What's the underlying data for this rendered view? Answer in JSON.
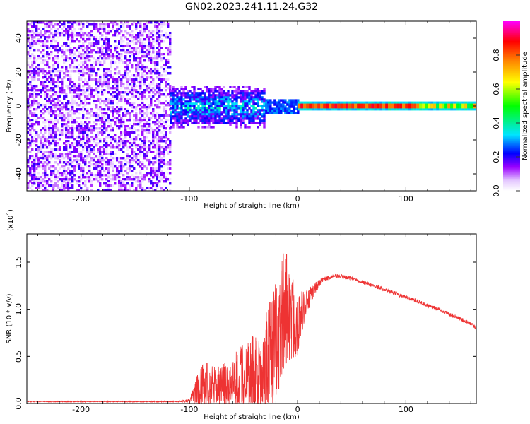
{
  "chart_data": [
    {
      "type": "heatmap",
      "title": "GN02.2023.241.11.24.G32",
      "xlabel": "Height of straight line (km)",
      "ylabel": "Frequency (Hz)",
      "xlim": [
        -250,
        165
      ],
      "ylim": [
        -50,
        50
      ],
      "xticks": [
        -200,
        -100,
        0,
        100
      ],
      "yticks": [
        -40,
        -20,
        0,
        20,
        40
      ],
      "colorbar": {
        "label": "Normalized spectral amplitude",
        "range": [
          0,
          1
        ],
        "ticks": [
          0.0,
          0.2,
          0.4,
          0.6,
          0.8
        ],
        "tick_labels": [
          "0.0",
          "0.2",
          "0.4",
          "0.6",
          "0.8"
        ],
        "colors": [
          "#ffffff",
          "#9a00ff",
          "#0000ff",
          "#00e5ff",
          "#00ff00",
          "#ffff00",
          "#ff8000",
          "#ff0000",
          "#ff00ff"
        ]
      },
      "regions": [
        {
          "name": "noise",
          "x_range": [
            -250,
            -118
          ],
          "freq_range": [
            -50,
            50
          ],
          "amplitude": [
            0.02,
            0.2
          ]
        },
        {
          "name": "broadband",
          "x_range": [
            -118,
            -30
          ],
          "freq_range": [
            -12,
            12
          ],
          "amplitude": [
            0.15,
            0.35
          ]
        },
        {
          "name": "transition",
          "x_range": [
            -30,
            0
          ],
          "freq_range": [
            -4,
            4
          ],
          "amplitude": [
            0.2,
            0.3
          ]
        },
        {
          "name": "direct-signal",
          "x_range": [
            0,
            165
          ],
          "freq_range": [
            -1,
            1
          ],
          "amplitude": [
            0.75,
            0.9
          ]
        }
      ]
    },
    {
      "type": "line",
      "title": "",
      "xlabel": "Height of straight line (km)",
      "ylabel": "SNR (10 * v/v)",
      "scale_label": "(x10",
      "scale_exponent": "4",
      "scale_suffix": ")",
      "xlim": [
        -250,
        165
      ],
      "ylim": [
        0,
        18000
      ],
      "xticks": [
        -200,
        -100,
        0,
        100
      ],
      "yticks": [
        0,
        5000,
        10000,
        15000
      ],
      "ytick_labels": [
        "0.0",
        "0.5",
        "1.0",
        "1.5"
      ],
      "color": "#ee3333",
      "series": [
        {
          "name": "SNR",
          "x": [
            -250,
            -200,
            -150,
            -110,
            -100,
            -95,
            -90,
            -85,
            -80,
            -75,
            -70,
            -65,
            -60,
            -55,
            -50,
            -45,
            -40,
            -35,
            -30,
            -25,
            -20,
            -15,
            -12,
            -10,
            -8,
            -5,
            -2,
            0,
            5,
            10,
            15,
            20,
            25,
            30,
            35,
            40,
            50,
            60,
            70,
            80,
            90,
            100,
            110,
            120,
            130,
            140,
            150,
            160,
            165
          ],
          "y": [
            200,
            200,
            200,
            200,
            300,
            1000,
            1800,
            2000,
            1900,
            1800,
            1900,
            2100,
            2300,
            2600,
            2800,
            3100,
            3300,
            3600,
            4000,
            5000,
            6500,
            8500,
            10000,
            10500,
            9500,
            9000,
            8800,
            8500,
            10000,
            11000,
            12000,
            12800,
            13200,
            13400,
            13500,
            13500,
            13300,
            12900,
            12500,
            12100,
            11700,
            11300,
            10900,
            10400,
            10000,
            9500,
            9000,
            8500,
            8000
          ],
          "noise_amp": [
            50,
            50,
            50,
            50,
            200,
            1200,
            2200,
            2600,
            2200,
            2000,
            2200,
            2500,
            2800,
            3200,
            3800,
            4200,
            4800,
            5200,
            5600,
            6000,
            6500,
            6500,
            7000,
            6000,
            5500,
            4800,
            4000,
            3500,
            2000,
            1200,
            700,
            400,
            300,
            250,
            200,
            200,
            200,
            200,
            200,
            200,
            200,
            200,
            200,
            200,
            200,
            200,
            200,
            200,
            200
          ]
        }
      ]
    }
  ]
}
